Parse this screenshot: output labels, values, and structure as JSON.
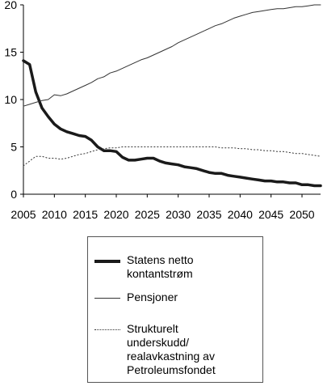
{
  "chart_data": {
    "type": "line",
    "xlim": [
      2005,
      2053
    ],
    "ylim": [
      0,
      20
    ],
    "x_ticks": [
      2005,
      2010,
      2015,
      2020,
      2025,
      2030,
      2035,
      2040,
      2045,
      2050
    ],
    "y_ticks": [
      0,
      5,
      10,
      15,
      20
    ],
    "grid": false,
    "legend_position": "bottom",
    "years": [
      2005,
      2006,
      2007,
      2008,
      2009,
      2010,
      2011,
      2012,
      2013,
      2014,
      2015,
      2016,
      2017,
      2018,
      2019,
      2020,
      2021,
      2022,
      2023,
      2024,
      2025,
      2026,
      2027,
      2028,
      2029,
      2030,
      2031,
      2032,
      2033,
      2034,
      2035,
      2036,
      2037,
      2038,
      2039,
      2040,
      2041,
      2042,
      2043,
      2044,
      2045,
      2046,
      2047,
      2048,
      2049,
      2050,
      2051,
      2052,
      2053
    ],
    "series": [
      {
        "name": "Statens netto kontantstrøm",
        "style": "thick",
        "color": "#1a1a1a",
        "values": [
          14.1,
          13.7,
          10.8,
          9.1,
          8.2,
          7.4,
          6.9,
          6.6,
          6.4,
          6.2,
          6.1,
          5.7,
          5.0,
          4.6,
          4.6,
          4.5,
          3.9,
          3.6,
          3.6,
          3.7,
          3.8,
          3.8,
          3.5,
          3.3,
          3.2,
          3.1,
          2.9,
          2.8,
          2.7,
          2.5,
          2.3,
          2.2,
          2.2,
          2.0,
          1.9,
          1.8,
          1.7,
          1.6,
          1.5,
          1.4,
          1.4,
          1.3,
          1.3,
          1.2,
          1.2,
          1.0,
          1.0,
          0.9,
          0.9
        ]
      },
      {
        "name": "Pensjoner",
        "style": "thin",
        "color": "#333333",
        "values": [
          9.3,
          9.5,
          9.7,
          9.9,
          10.0,
          10.5,
          10.4,
          10.6,
          10.9,
          11.2,
          11.5,
          11.8,
          12.2,
          12.4,
          12.8,
          13.0,
          13.3,
          13.6,
          13.9,
          14.2,
          14.4,
          14.7,
          15.0,
          15.3,
          15.6,
          16.0,
          16.3,
          16.6,
          16.9,
          17.2,
          17.5,
          17.8,
          18.0,
          18.3,
          18.6,
          18.8,
          19.0,
          19.2,
          19.3,
          19.4,
          19.5,
          19.6,
          19.6,
          19.7,
          19.8,
          19.8,
          19.9,
          20.0,
          20.0
        ]
      },
      {
        "name": "Strukturelt underskudd/ realavkastning av Petroleumsfondet",
        "style": "dotted",
        "color": "#333333",
        "values": [
          3.0,
          3.5,
          4.0,
          4.0,
          3.8,
          3.8,
          3.7,
          3.8,
          4.0,
          4.2,
          4.3,
          4.5,
          4.7,
          4.8,
          4.9,
          4.9,
          5.0,
          5.0,
          5.0,
          5.0,
          5.0,
          5.0,
          5.0,
          5.0,
          5.0,
          5.0,
          5.0,
          5.0,
          5.0,
          5.0,
          5.0,
          5.0,
          4.9,
          4.9,
          4.9,
          4.8,
          4.8,
          4.7,
          4.7,
          4.6,
          4.6,
          4.5,
          4.5,
          4.4,
          4.3,
          4.3,
          4.2,
          4.1,
          4.0
        ]
      }
    ]
  },
  "legend": {
    "items": [
      {
        "label_line1": "Statens netto",
        "label_line2": "kontantstrøm"
      },
      {
        "label_line1": "Pensjoner"
      },
      {
        "label_line1": "Strukturelt",
        "label_line2": "underskudd/",
        "label_line3": "realavkastning av",
        "label_line4": "Petroleumsfondet"
      }
    ]
  }
}
